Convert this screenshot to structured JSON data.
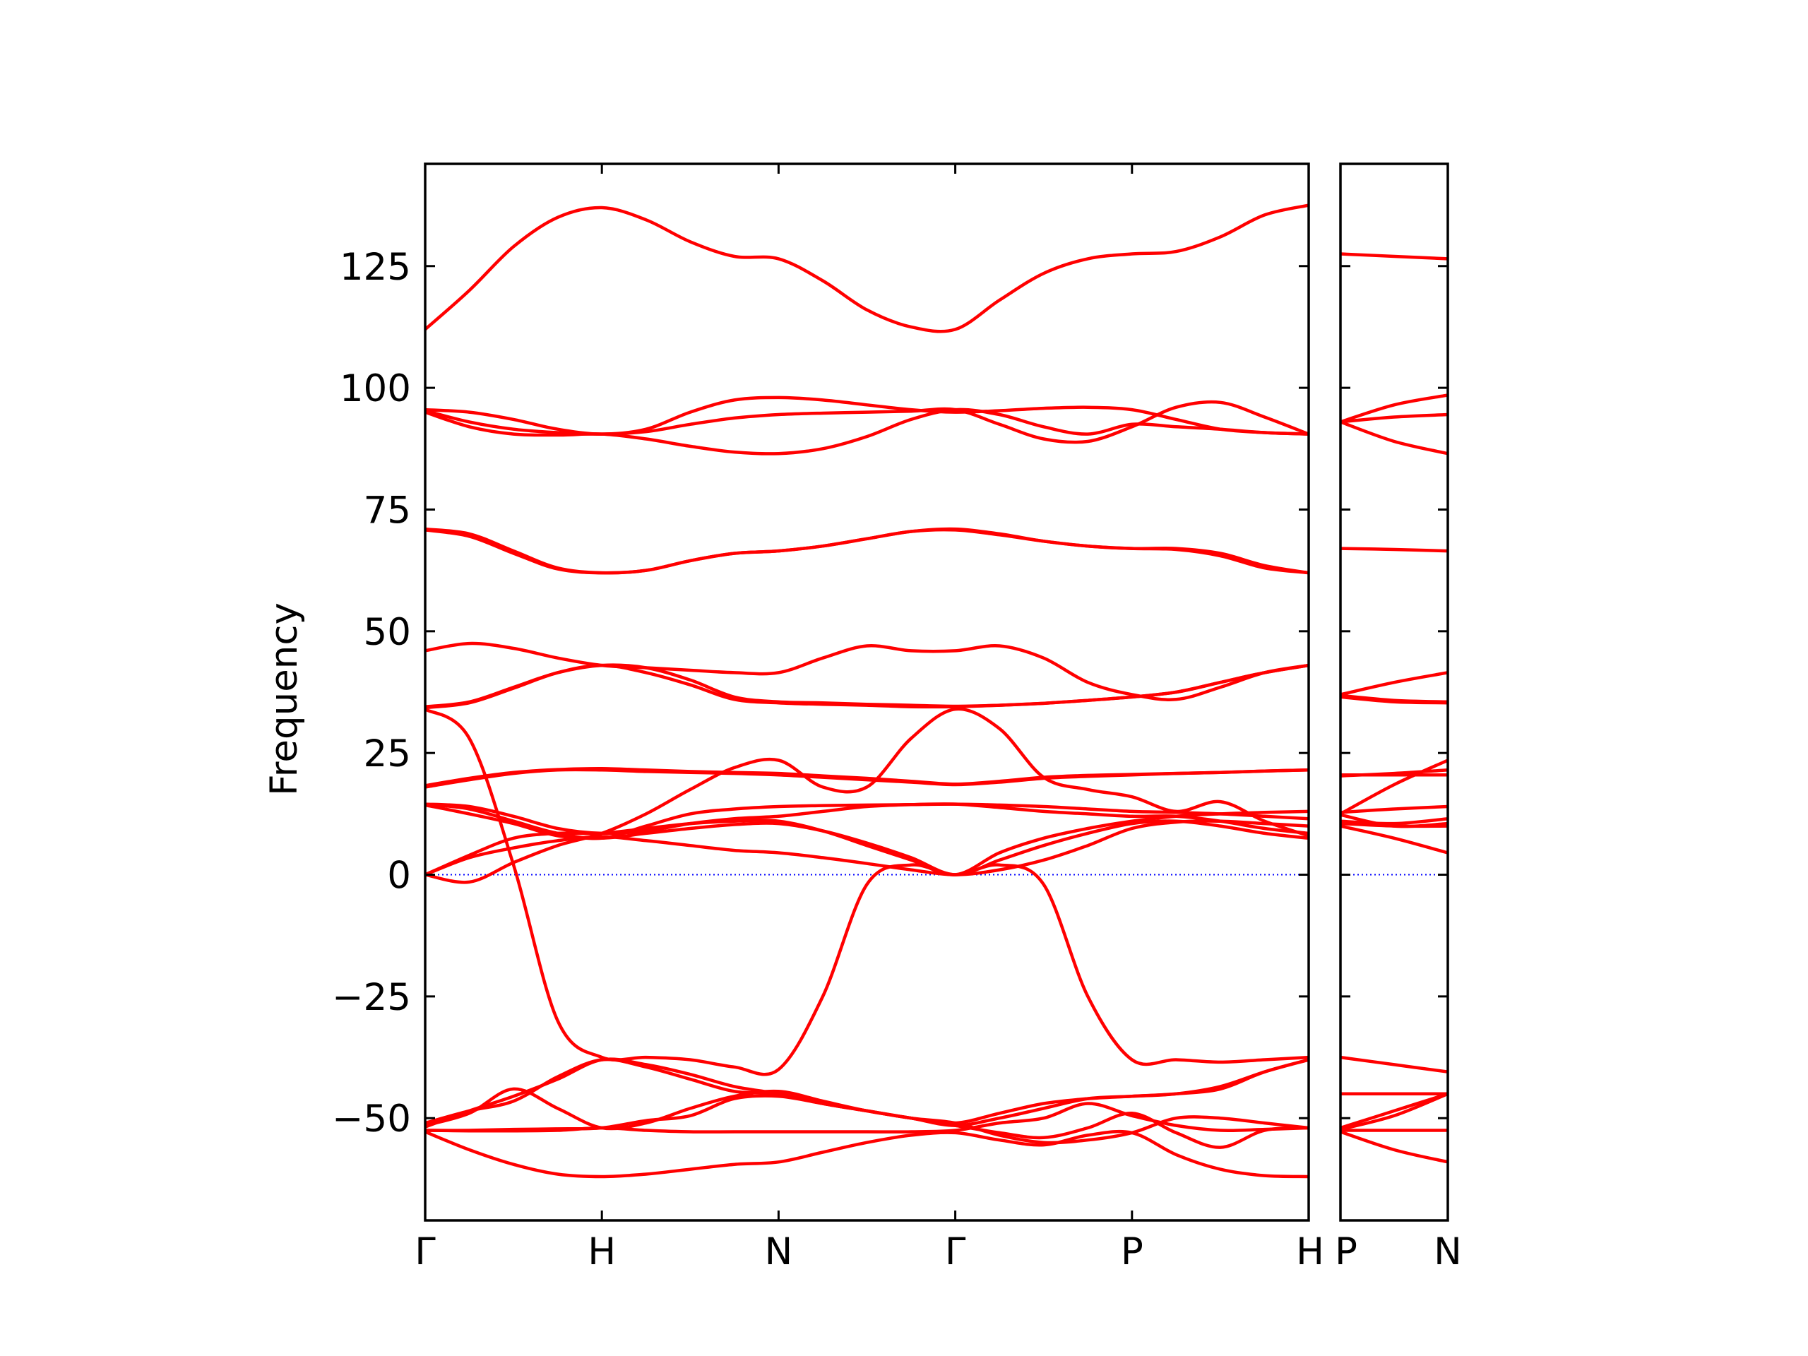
{
  "chart_data": {
    "type": "line",
    "ylabel": "Frequency",
    "xlabel": "",
    "ylim": [
      -71,
      146
    ],
    "yticks": [
      -50,
      -25,
      0,
      25,
      50,
      75,
      100,
      125
    ],
    "ytick_labels": [
      "−50",
      "−25",
      "0",
      "25",
      "50",
      "75",
      "100",
      "125"
    ],
    "series_color": "#ff0000",
    "zero_line_color": "#0000ff",
    "grid": false,
    "segments": [
      {
        "name": "path-1",
        "x": [
          0,
          0.25,
          0.5,
          0.75,
          1.0,
          1.25,
          1.5,
          1.75,
          2.0,
          2.25,
          2.5,
          2.75,
          3.0,
          3.25,
          3.5,
          3.75,
          4.0,
          4.25,
          4.5,
          4.75,
          5.0
        ],
        "x_ticks": [
          0,
          1.0,
          2.0,
          3.0,
          4.0,
          5.0
        ],
        "x_tick_labels": [
          "Γ",
          "H",
          "N",
          "Γ",
          "P",
          "H"
        ],
        "bands": [
          [
            112.0,
            120.0,
            129.0,
            135.0,
            137.0,
            134.5,
            130.0,
            127.0,
            126.5,
            122.0,
            116.0,
            112.5,
            112.0,
            118.0,
            123.5,
            126.5,
            127.5,
            128.0,
            131.0,
            135.5,
            137.5
          ],
          [
            95.5,
            95.0,
            93.5,
            91.5,
            90.5,
            91.5,
            95.0,
            97.5,
            98.0,
            97.5,
            96.5,
            95.5,
            95.0,
            95.3,
            95.8,
            96.0,
            95.5,
            93.5,
            91.5,
            90.8,
            90.5
          ],
          [
            95.3,
            93.0,
            91.5,
            90.8,
            90.5,
            91.0,
            92.5,
            93.8,
            94.5,
            94.8,
            95.0,
            95.2,
            95.5,
            92.5,
            89.5,
            89.0,
            92.0,
            96.0,
            97.0,
            94.0,
            90.5
          ],
          [
            95.0,
            92.0,
            90.5,
            90.3,
            90.5,
            89.5,
            88.0,
            86.8,
            86.5,
            87.5,
            90.0,
            93.5,
            95.5,
            94.5,
            92.0,
            90.5,
            92.5,
            92.0,
            91.5,
            90.8,
            90.5
          ],
          [
            71.0,
            70.0,
            66.5,
            63.0,
            62.0,
            62.5,
            64.5,
            66.0,
            66.5,
            67.5,
            69.0,
            70.5,
            71.0,
            70.0,
            68.5,
            67.5,
            67.0,
            67.0,
            66.0,
            63.5,
            62.0
          ],
          [
            70.8,
            69.5,
            66.0,
            62.8,
            62.0,
            62.5,
            64.5,
            66.0,
            66.5,
            67.5,
            69.0,
            70.5,
            70.8,
            69.8,
            68.5,
            67.5,
            67.0,
            66.8,
            65.5,
            63.0,
            62.0
          ],
          [
            46.0,
            47.5,
            46.5,
            44.5,
            43.0,
            42.5,
            42.0,
            41.5,
            41.5,
            44.5,
            47.0,
            46.0,
            46.0,
            47.0,
            44.5,
            39.5,
            37.0,
            36.0,
            38.5,
            41.5,
            43.0
          ],
          [
            34.5,
            35.5,
            38.5,
            41.5,
            43.0,
            42.5,
            40.0,
            36.5,
            35.5,
            35.3,
            35.0,
            34.8,
            34.6,
            34.8,
            35.2,
            35.8,
            36.5,
            37.5,
            39.5,
            41.5,
            43.0
          ],
          [
            34.3,
            35.3,
            38.3,
            41.5,
            43.0,
            41.5,
            39.0,
            36.0,
            35.3,
            35.0,
            34.8,
            34.5,
            34.5,
            34.8,
            35.2,
            35.8,
            36.5,
            37.5,
            39.5,
            41.5,
            43.0
          ],
          [
            34.0,
            28.0,
            2.0,
            -30.0,
            -37.5,
            -37.5,
            -38.0,
            -39.5,
            -40.0,
            -25.0,
            -2.0,
            2.0,
            0.0,
            2.0,
            -2.0,
            -25.0,
            -38.0,
            -38.0,
            -38.5,
            -38.0,
            -37.5
          ],
          [
            18.0,
            19.5,
            20.8,
            21.5,
            21.5,
            21.2,
            21.0,
            20.8,
            20.5,
            20.0,
            19.5,
            19.0,
            18.5,
            19.0,
            19.8,
            20.2,
            20.5,
            20.8,
            21.0,
            21.3,
            21.5
          ],
          [
            18.3,
            19.8,
            21.0,
            21.6,
            21.8,
            21.5,
            21.2,
            21.0,
            20.8,
            20.3,
            19.8,
            19.2,
            18.6,
            19.2,
            20.0,
            20.4,
            20.6,
            20.8,
            21.0,
            21.3,
            21.5
          ],
          [
            14.5,
            14.0,
            12.0,
            9.5,
            8.5,
            9.0,
            10.5,
            11.5,
            12.0,
            13.0,
            14.0,
            14.4,
            14.5,
            13.8,
            13.0,
            12.5,
            12.0,
            12.0,
            11.0,
            9.5,
            8.5
          ],
          [
            14.5,
            13.5,
            11.0,
            8.5,
            7.5,
            10.0,
            12.5,
            13.5,
            14.0,
            14.2,
            14.3,
            14.4,
            14.5,
            14.3,
            14.0,
            13.5,
            13.0,
            12.8,
            12.5,
            12.0,
            11.5
          ],
          [
            14.3,
            12.5,
            10.5,
            8.0,
            7.5,
            8.5,
            9.5,
            10.3,
            10.5,
            9.0,
            6.5,
            3.5,
            0.0,
            3.0,
            6.0,
            8.5,
            10.5,
            11.0,
            10.0,
            8.5,
            7.5
          ],
          [
            0.0,
            4.0,
            7.5,
            8.5,
            8.5,
            9.5,
            10.5,
            11.0,
            11.0,
            9.0,
            6.0,
            3.0,
            0.0,
            4.5,
            7.5,
            9.5,
            11.0,
            12.0,
            12.5,
            12.8,
            13.0
          ],
          [
            0.0,
            -1.5,
            2.5,
            6.0,
            8.5,
            12.5,
            17.5,
            22.0,
            23.5,
            18.0,
            18.0,
            28.0,
            34.0,
            30.0,
            20.0,
            17.5,
            16.0,
            13.0,
            15.0,
            11.0,
            8.0
          ],
          [
            0.0,
            3.5,
            5.5,
            7.0,
            7.8,
            7.0,
            6.0,
            5.0,
            4.5,
            3.5,
            2.3,
            1.0,
            0.0,
            1.0,
            3.0,
            6.0,
            9.5,
            10.8,
            11.0,
            10.5,
            10.0
          ],
          [
            -51.0,
            -48.5,
            -46.5,
            -41.5,
            -38.0,
            -39.5,
            -42.0,
            -44.5,
            -45.0,
            -47.0,
            -48.5,
            -50.0,
            -51.0,
            -49.0,
            -47.0,
            -46.0,
            -45.5,
            -45.0,
            -44.0,
            -40.5,
            -38.0
          ],
          [
            -51.5,
            -49.0,
            -44.0,
            -48.0,
            -52.0,
            -51.0,
            -48.0,
            -45.5,
            -44.5,
            -46.5,
            -48.5,
            -50.0,
            -51.5,
            -50.0,
            -48.0,
            -46.0,
            -45.5,
            -45.0,
            -43.5,
            -40.5,
            -38.0
          ],
          [
            -51.8,
            -48.5,
            -45.5,
            -42.0,
            -38.0,
            -39.0,
            -41.0,
            -43.5,
            -45.0,
            -47.0,
            -48.5,
            -50.0,
            -51.5,
            -53.0,
            -54.0,
            -52.0,
            -49.0,
            -53.0,
            -56.0,
            -52.5,
            -52.0
          ],
          [
            -52.5,
            -52.5,
            -52.3,
            -52.2,
            -52.0,
            -50.5,
            -49.5,
            -46.0,
            -45.5,
            -47.0,
            -48.5,
            -50.0,
            -51.0,
            -53.5,
            -55.0,
            -54.5,
            -53.0,
            -50.0,
            -50.0,
            -51.0,
            -52.0
          ],
          [
            -52.5,
            -52.6,
            -52.6,
            -52.5,
            -52.0,
            -52.5,
            -52.8,
            -52.8,
            -52.8,
            -52.8,
            -52.8,
            -52.8,
            -52.5,
            -51.0,
            -50.0,
            -47.0,
            -49.5,
            -51.5,
            -52.5,
            -52.3,
            -52.0
          ],
          [
            -52.8,
            -56.5,
            -59.5,
            -61.5,
            -62.0,
            -61.5,
            -60.5,
            -59.5,
            -59.0,
            -57.0,
            -55.0,
            -53.5,
            -53.0,
            -54.5,
            -55.5,
            -53.5,
            -53.0,
            -57.5,
            -60.5,
            -61.8,
            -62.0
          ]
        ]
      },
      {
        "name": "path-2",
        "x": [
          5.0,
          5.25,
          5.5
        ],
        "x_ticks": [
          5.0,
          5.5
        ],
        "x_tick_labels": [
          "P",
          "N"
        ],
        "bands": [
          [
            127.5,
            127.0,
            126.5
          ],
          [
            93.0,
            96.5,
            98.5
          ],
          [
            93.0,
            94.0,
            94.5
          ],
          [
            93.0,
            89.0,
            86.5
          ],
          [
            67.0,
            66.8,
            66.5
          ],
          [
            37.0,
            39.5,
            41.5
          ],
          [
            36.8,
            35.8,
            35.5
          ],
          [
            36.5,
            35.5,
            35.3
          ],
          [
            20.5,
            20.5,
            20.5
          ],
          [
            20.3,
            20.8,
            21.5
          ],
          [
            12.5,
            18.5,
            23.5
          ],
          [
            12.8,
            13.5,
            14.0
          ],
          [
            12.3,
            10.0,
            10.5
          ],
          [
            11.0,
            10.5,
            11.5
          ],
          [
            10.5,
            10.0,
            10.0
          ],
          [
            10.0,
            7.5,
            4.5
          ],
          [
            -37.5,
            -39.0,
            -40.5
          ],
          [
            -45.0,
            -45.0,
            -45.0
          ],
          [
            -52.0,
            -48.5,
            -45.0
          ],
          [
            -52.3,
            -49.5,
            -45.0
          ],
          [
            -52.5,
            -52.5,
            -52.5
          ],
          [
            -52.8,
            -56.5,
            -59.0
          ]
        ]
      }
    ]
  }
}
